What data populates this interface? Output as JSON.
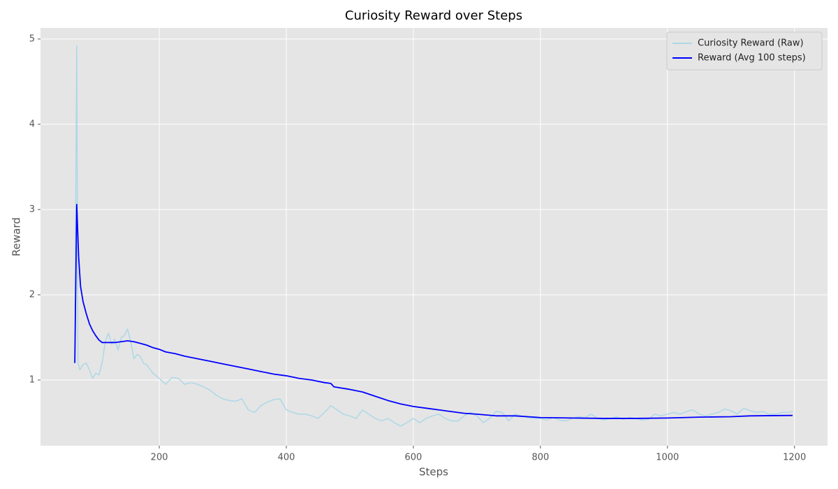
{
  "chart_data": {
    "type": "line",
    "title": "Curiosity Reward over Steps",
    "x_label": "Steps",
    "y_label": "Reward",
    "xlim": [
      13,
      1252
    ],
    "ylim": [
      0.23,
      5.13
    ],
    "xticks": [
      200,
      400,
      600,
      800,
      1000,
      1200
    ],
    "yticks": [
      1,
      2,
      3,
      4,
      5
    ],
    "grid": true,
    "legend": "upper right",
    "series": [
      {
        "name": "Curiosity Reward (Raw)",
        "color": "#add8e6",
        "x": [
          67,
          70,
          72,
          75,
          80,
          85,
          90,
          95,
          100,
          105,
          110,
          115,
          120,
          125,
          130,
          135,
          140,
          145,
          150,
          155,
          160,
          165,
          170,
          175,
          180,
          190,
          200,
          210,
          220,
          230,
          240,
          250,
          260,
          270,
          280,
          290,
          300,
          310,
          320,
          330,
          340,
          350,
          360,
          370,
          380,
          390,
          400,
          410,
          420,
          430,
          440,
          450,
          460,
          470,
          480,
          490,
          500,
          510,
          520,
          530,
          540,
          550,
          560,
          570,
          580,
          590,
          600,
          610,
          620,
          630,
          640,
          650,
          660,
          670,
          680,
          690,
          700,
          710,
          720,
          730,
          740,
          750,
          760,
          770,
          780,
          790,
          800,
          810,
          820,
          830,
          840,
          850,
          860,
          870,
          880,
          890,
          900,
          910,
          920,
          930,
          940,
          950,
          960,
          970,
          980,
          990,
          1000,
          1010,
          1020,
          1030,
          1040,
          1050,
          1060,
          1070,
          1080,
          1090,
          1100,
          1110,
          1120,
          1130,
          1140,
          1150,
          1160,
          1170,
          1180,
          1190,
          1197
        ],
        "values": [
          1.2,
          4.92,
          1.2,
          1.12,
          1.18,
          1.2,
          1.12,
          1.02,
          1.08,
          1.06,
          1.2,
          1.45,
          1.55,
          1.42,
          1.48,
          1.35,
          1.5,
          1.52,
          1.6,
          1.45,
          1.25,
          1.3,
          1.28,
          1.2,
          1.18,
          1.08,
          1.02,
          0.95,
          1.03,
          1.02,
          0.95,
          0.97,
          0.95,
          0.92,
          0.88,
          0.82,
          0.78,
          0.76,
          0.75,
          0.78,
          0.65,
          0.62,
          0.7,
          0.74,
          0.77,
          0.78,
          0.65,
          0.62,
          0.6,
          0.6,
          0.58,
          0.55,
          0.62,
          0.7,
          0.65,
          0.6,
          0.58,
          0.55,
          0.65,
          0.6,
          0.55,
          0.52,
          0.55,
          0.5,
          0.46,
          0.5,
          0.55,
          0.5,
          0.55,
          0.58,
          0.6,
          0.55,
          0.52,
          0.52,
          0.58,
          0.62,
          0.58,
          0.5,
          0.55,
          0.63,
          0.62,
          0.52,
          0.6,
          0.58,
          0.56,
          0.55,
          0.55,
          0.53,
          0.56,
          0.53,
          0.52,
          0.55,
          0.57,
          0.56,
          0.6,
          0.55,
          0.53,
          0.55,
          0.57,
          0.54,
          0.56,
          0.55,
          0.53,
          0.54,
          0.6,
          0.58,
          0.6,
          0.62,
          0.6,
          0.63,
          0.65,
          0.6,
          0.58,
          0.6,
          0.62,
          0.66,
          0.64,
          0.6,
          0.67,
          0.64,
          0.62,
          0.63,
          0.6,
          0.6,
          0.62,
          0.62,
          0.63
        ]
      },
      {
        "name": "Reward (Avg 100 steps)",
        "color": "#0000ff",
        "x": [
          67,
          70,
          73,
          76,
          80,
          85,
          90,
          95,
          100,
          105,
          110,
          120,
          130,
          140,
          150,
          160,
          170,
          180,
          190,
          200,
          210,
          225,
          240,
          260,
          280,
          300,
          320,
          340,
          360,
          380,
          400,
          420,
          440,
          460,
          470,
          475,
          500,
          520,
          540,
          560,
          580,
          600,
          620,
          650,
          680,
          700,
          730,
          760,
          800,
          850,
          900,
          950,
          1000,
          1050,
          1100,
          1130,
          1197
        ],
        "values": [
          1.2,
          3.06,
          2.45,
          2.1,
          1.92,
          1.78,
          1.66,
          1.58,
          1.52,
          1.47,
          1.44,
          1.44,
          1.44,
          1.45,
          1.46,
          1.45,
          1.43,
          1.41,
          1.38,
          1.36,
          1.33,
          1.31,
          1.28,
          1.25,
          1.22,
          1.19,
          1.16,
          1.13,
          1.1,
          1.07,
          1.05,
          1.02,
          1.0,
          0.97,
          0.96,
          0.92,
          0.89,
          0.86,
          0.81,
          0.76,
          0.72,
          0.69,
          0.67,
          0.64,
          0.61,
          0.6,
          0.58,
          0.58,
          0.56,
          0.555,
          0.55,
          0.55,
          0.555,
          0.565,
          0.57,
          0.58,
          0.585
        ]
      }
    ]
  }
}
